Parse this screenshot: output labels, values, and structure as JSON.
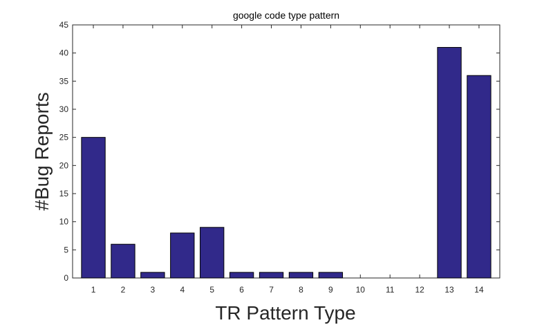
{
  "chart_data": {
    "type": "bar",
    "title": "google code type pattern",
    "xlabel": "TR Pattern Type",
    "ylabel": "#Bug Reports",
    "categories": [
      "1",
      "2",
      "3",
      "4",
      "5",
      "6",
      "7",
      "8",
      "9",
      "10",
      "11",
      "12",
      "13",
      "14"
    ],
    "values": [
      25,
      6,
      1,
      8,
      9,
      1,
      1,
      1,
      1,
      0,
      0,
      0,
      41,
      36
    ],
    "ylim": [
      0,
      45
    ],
    "yticks": [
      0,
      5,
      10,
      15,
      20,
      25,
      30,
      35,
      40,
      45
    ],
    "grid": false,
    "bar_color": "#31298a",
    "bar_edge_color": "#000000"
  }
}
